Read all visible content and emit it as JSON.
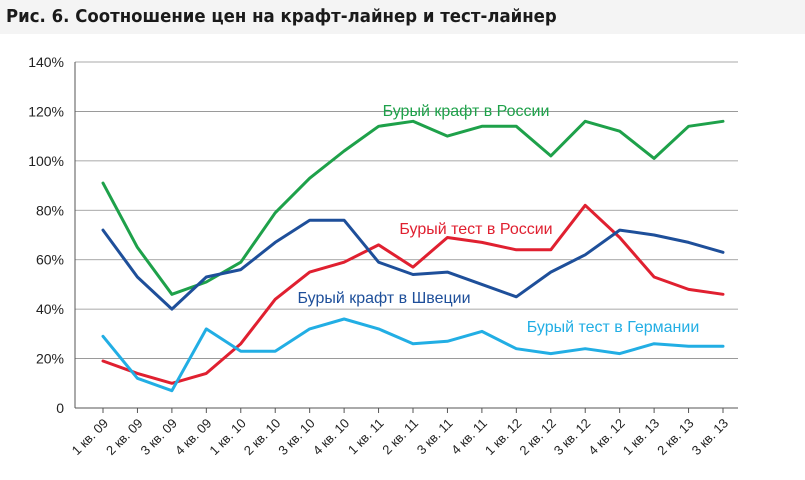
{
  "title": "Рис. 6. Соотношение цен на крафт-лайнер и тест-лайнер",
  "chart_data": {
    "type": "line",
    "title": "Рис. 6. Соотношение цен на крафт-лайнер и тест-лайнер",
    "xlabel": "",
    "ylabel": "",
    "ylim": [
      0,
      140
    ],
    "yticks": [
      "0",
      "20%",
      "40%",
      "60%",
      "80%",
      "100%",
      "120%",
      "140%"
    ],
    "grid": true,
    "categories": [
      "1 кв. 09",
      "2 кв. 09",
      "3 кв. 09",
      "4 кв. 09",
      "1 кв. 10",
      "2 кв. 10",
      "3 кв. 10",
      "4 кв. 10",
      "1 кв. 11",
      "2 кв. 11",
      "3 кв. 11",
      "4 кв. 11",
      "1 кв. 12",
      "2 кв. 12",
      "3 кв. 12",
      "4 кв. 12",
      "1 кв. 13",
      "2 кв. 13",
      "3 кв. 13"
    ],
    "series": [
      {
        "name": "Бурый крафт в России",
        "color": "#1ea14a",
        "values": [
          91,
          65,
          46,
          51,
          59,
          79,
          93,
          104,
          114,
          116,
          110,
          114,
          114,
          102,
          116,
          112,
          101,
          114,
          116
        ]
      },
      {
        "name": "Бурый тест в России",
        "color": "#e02030",
        "values": [
          19,
          14,
          10,
          14,
          26,
          44,
          55,
          59,
          66,
          57,
          69,
          67,
          64,
          64,
          82,
          69,
          53,
          48,
          46
        ]
      },
      {
        "name": "Бурый крафт в Швеции",
        "color": "#1e4f9a",
        "values": [
          72,
          53,
          40,
          53,
          56,
          67,
          76,
          76,
          59,
          54,
          55,
          50,
          45,
          55,
          62,
          72,
          70,
          67,
          63
        ]
      },
      {
        "name": "Бурый тест в Германии",
        "color": "#22aee4",
        "values": [
          29,
          12,
          7,
          32,
          23,
          23,
          32,
          36,
          32,
          26,
          27,
          31,
          24,
          22,
          24,
          22,
          26,
          25,
          25
        ]
      }
    ]
  }
}
